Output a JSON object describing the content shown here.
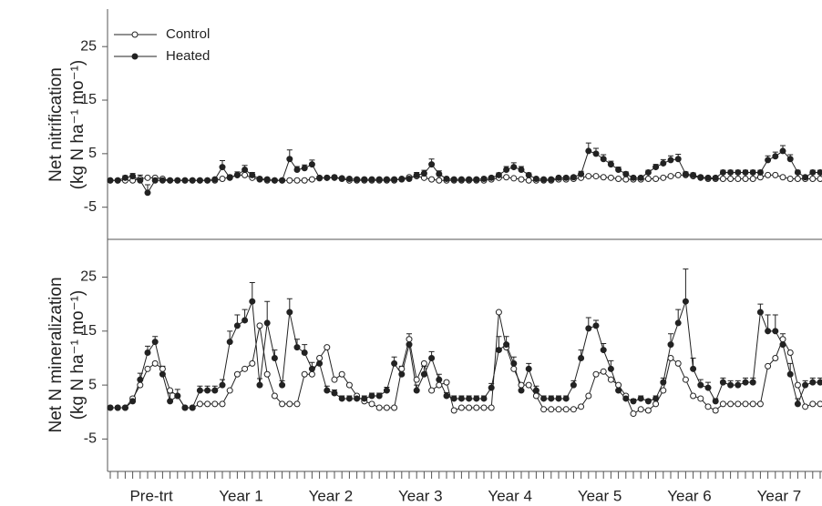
{
  "chart_data": [
    {
      "type": "line",
      "ylabel": "Net nitrification",
      "yunit": "(kg N ha⁻¹ mo⁻¹)",
      "ylim": [
        -11,
        32
      ],
      "yticks": [
        -5,
        5,
        15,
        25
      ],
      "categories": [
        null,
        null,
        null,
        null,
        null,
        null,
        null,
        null,
        null,
        null,
        null,
        null,
        null,
        null,
        null,
        null,
        null,
        null,
        null,
        null,
        null,
        null,
        null,
        null,
        null,
        null,
        null,
        null,
        null,
        null,
        null,
        null,
        null,
        null,
        null,
        null,
        null,
        null,
        null,
        null,
        null,
        null,
        null,
        null,
        null,
        null,
        null,
        null,
        null,
        null,
        null,
        null,
        null,
        null,
        null,
        null,
        null,
        null,
        null,
        null,
        null,
        null,
        null,
        null,
        null,
        null,
        null,
        null,
        null,
        null,
        null,
        null,
        null,
        null,
        null,
        null,
        null,
        null,
        null,
        null,
        null,
        null,
        null,
        null,
        null,
        null,
        null,
        null,
        null,
        null,
        null,
        null,
        null,
        null,
        null,
        null
      ],
      "legend": "upper left",
      "series": [
        {
          "name": "Control",
          "color": "#222222",
          "marker": "open",
          "values": [
            0,
            0,
            0,
            0,
            0.3,
            0.5,
            0.5,
            0.3,
            0,
            0,
            0,
            0,
            0,
            0,
            0,
            0.3,
            0.6,
            1,
            1,
            0.5,
            0.2,
            0,
            0,
            0,
            0,
            0,
            0,
            0.2,
            0.4,
            0.5,
            0.5,
            0.3,
            0,
            0,
            0,
            0,
            0,
            0,
            0,
            0.3,
            0.6,
            0.8,
            0.5,
            0.2,
            0,
            0,
            0,
            0,
            0,
            0,
            0,
            0.2,
            0.5,
            0.6,
            0.4,
            0.2,
            0,
            0,
            0,
            0,
            0.2,
            0.2,
            0.3,
            0.5,
            0.8,
            0.8,
            0.6,
            0.5,
            0.3,
            0.2,
            0.2,
            0.2,
            0.3,
            0.3,
            0.5,
            0.8,
            1,
            1,
            0.8,
            0.5,
            0.3,
            0.3,
            0.3,
            0.3,
            0.3,
            0.3,
            0.3,
            0.6,
            1,
            1,
            0.6,
            0.3,
            0.3,
            0.3,
            0.3,
            0.3
          ]
        },
        {
          "name": "Heated",
          "color": "#222222",
          "marker": "filled",
          "values": [
            0,
            0,
            0.5,
            0.8,
            0,
            -2.3,
            0,
            0,
            0,
            0,
            0,
            0,
            0,
            0,
            0.2,
            2.5,
            0.5,
            1,
            2,
            1,
            0.3,
            0.2,
            0,
            0,
            4,
            2,
            2.3,
            3,
            0.5,
            0.5,
            0.6,
            0.4,
            0.3,
            0.2,
            0.2,
            0.2,
            0.2,
            0.2,
            0.2,
            0.2,
            0.3,
            1,
            1.3,
            3,
            1.2,
            0.3,
            0.2,
            0.2,
            0.2,
            0.2,
            0.3,
            0.5,
            1,
            2,
            2.5,
            2,
            1,
            0.3,
            0.2,
            0.2,
            0.5,
            0.5,
            0.6,
            1.2,
            5.5,
            5,
            4,
            3,
            2,
            1.2,
            0.5,
            0.5,
            1.5,
            2.5,
            3.2,
            3.8,
            4,
            1.2,
            1,
            0.6,
            0.5,
            0.5,
            1.5,
            1.5,
            1.5,
            1.5,
            1.5,
            1.5,
            3.8,
            4.5,
            5.5,
            4,
            1.5,
            0.6,
            1.5,
            1.5
          ],
          "errors": [
            0.3,
            0.3,
            0.4,
            0.5,
            1,
            1.5,
            0.3,
            0.3,
            0.3,
            0.3,
            0.3,
            0.3,
            0.3,
            0.3,
            0.3,
            1.2,
            0.5,
            0.6,
            0.8,
            0.5,
            0.3,
            0.3,
            0.3,
            0.3,
            1.7,
            0.6,
            0.6,
            0.8,
            0.3,
            0.3,
            0.3,
            0.3,
            0.3,
            0.3,
            0.3,
            0.3,
            0.3,
            0.3,
            0.3,
            0.3,
            0.3,
            0.5,
            0.6,
            1,
            0.6,
            0.3,
            0.3,
            0.3,
            0.3,
            0.3,
            0.3,
            0.3,
            0.4,
            0.6,
            0.8,
            0.6,
            0.4,
            0.3,
            0.3,
            0.3,
            0.3,
            0.3,
            0.3,
            0.5,
            1.5,
            1,
            0.8,
            0.6,
            0.5,
            0.4,
            0.3,
            0.3,
            0.4,
            0.5,
            0.7,
            0.8,
            0.9,
            0.4,
            0.4,
            0.3,
            0.3,
            0.3,
            0.4,
            0.4,
            0.4,
            0.4,
            0.4,
            0.4,
            0.8,
            0.8,
            1,
            0.8,
            0.4,
            0.3,
            0.4,
            0.4
          ]
        }
      ]
    },
    {
      "type": "line",
      "ylabel": "Net N mineralization",
      "yunit": "(kg N ha⁻¹ mo⁻¹)",
      "ylim": [
        -11,
        32
      ],
      "yticks": [
        -5,
        5,
        15,
        25
      ],
      "groups": [
        "Pre-trt",
        "Year 1",
        "Year 2",
        "Year 3",
        "Year 4",
        "Year 5",
        "Year 6",
        "Year 7"
      ],
      "categories": [
        null,
        null,
        null,
        null,
        null,
        null,
        null,
        null,
        null,
        null,
        null,
        null,
        null,
        null,
        null,
        null,
        null,
        null,
        null,
        null,
        null,
        null,
        null,
        null,
        null,
        null,
        null,
        null,
        null,
        null,
        null,
        null,
        null,
        null,
        null,
        null,
        null,
        null,
        null,
        null,
        null,
        null,
        null,
        null,
        null,
        null,
        null,
        null,
        null,
        null,
        null,
        null,
        null,
        null,
        null,
        null,
        null,
        null,
        null,
        null,
        null,
        null,
        null,
        null,
        null,
        null,
        null,
        null,
        null,
        null,
        null,
        null,
        null,
        null,
        null,
        null,
        null,
        null,
        null,
        null,
        null,
        null,
        null,
        null,
        null,
        null,
        null,
        null,
        null,
        null,
        null,
        null,
        null,
        null,
        null,
        null
      ],
      "series": [
        {
          "name": "Control",
          "color": "#222222",
          "marker": "open",
          "values": [
            0.8,
            0.8,
            0.8,
            2.5,
            5,
            8,
            9,
            8,
            4,
            3,
            0.8,
            0.8,
            1.5,
            1.5,
            1.5,
            1.5,
            4,
            7,
            8,
            9,
            16,
            7,
            3,
            1.5,
            1.5,
            1.5,
            7,
            7,
            10,
            12,
            6,
            7,
            5,
            3,
            2,
            1.5,
            0.8,
            0.8,
            0.8,
            8,
            13.5,
            6,
            9,
            4,
            5,
            5.5,
            0.3,
            0.8,
            0.8,
            0.8,
            0.8,
            0.8,
            18.5,
            12,
            8,
            5,
            5,
            3,
            0.5,
            0.5,
            0.5,
            0.5,
            0.5,
            1,
            3,
            7,
            7.5,
            6,
            5,
            3,
            -0.3,
            0.5,
            0.3,
            1.5,
            4,
            10,
            9,
            6,
            3,
            2.5,
            1,
            0.3,
            1.5,
            1.5,
            1.5,
            1.5,
            1.5,
            1.5,
            8.5,
            10,
            13.5,
            11,
            5,
            1,
            1.5,
            1.5
          ]
        },
        {
          "name": "Heated",
          "color": "#222222",
          "marker": "filled",
          "values": [
            0.8,
            0.8,
            0.8,
            2,
            6,
            11,
            13,
            7,
            2,
            3,
            0.8,
            0.8,
            4,
            4,
            4,
            5,
            13,
            16,
            17,
            20.5,
            5,
            16.5,
            10,
            5,
            18.5,
            12,
            11,
            8,
            9,
            4,
            3.5,
            2.5,
            2.5,
            2.5,
            2.5,
            3,
            3,
            4,
            9,
            7,
            12.5,
            4,
            7,
            10,
            6,
            3,
            2.5,
            2.5,
            2.5,
            2.5,
            2.5,
            4.5,
            11.5,
            12.5,
            9,
            4,
            8,
            4,
            2.5,
            2.5,
            2.5,
            2.5,
            5,
            10,
            15.5,
            16,
            11.5,
            8,
            4,
            2.5,
            2,
            2.5,
            2,
            2.5,
            5.5,
            12.5,
            16.5,
            20.5,
            8,
            5,
            4.5,
            2,
            5.5,
            5,
            5,
            5.5,
            5.5,
            18.5,
            15,
            15,
            12.5,
            7,
            1.5,
            5,
            5.5,
            5.5
          ],
          "errors": [
            0.3,
            0.3,
            0.3,
            0.8,
            1.2,
            1.2,
            1,
            1.5,
            1.5,
            1.2,
            0.3,
            0.3,
            0.8,
            0.8,
            0.8,
            1,
            2,
            2,
            2,
            3.5,
            1.2,
            4,
            1.5,
            0.8,
            2.5,
            1.5,
            1.5,
            1.2,
            1.2,
            0.8,
            0.6,
            0.5,
            0.5,
            0.5,
            0.5,
            0.5,
            0.5,
            0.6,
            1.2,
            1.5,
            2,
            1,
            1.5,
            1.2,
            1,
            0.6,
            0.5,
            0.5,
            0.5,
            0.5,
            0.5,
            0.8,
            2.5,
            1.5,
            1.2,
            0.8,
            1,
            0.8,
            0.5,
            0.5,
            0.5,
            0.5,
            0.8,
            1.5,
            2,
            1,
            1.2,
            1.5,
            1,
            0.5,
            0.4,
            0.5,
            0.4,
            0.5,
            0.8,
            2,
            2.5,
            6,
            2,
            1,
            1,
            0.5,
            0.8,
            0.8,
            0.8,
            0.8,
            0.8,
            1.5,
            3,
            3,
            2,
            2,
            1,
            0.8,
            0.8,
            0.8
          ]
        }
      ]
    }
  ]
}
